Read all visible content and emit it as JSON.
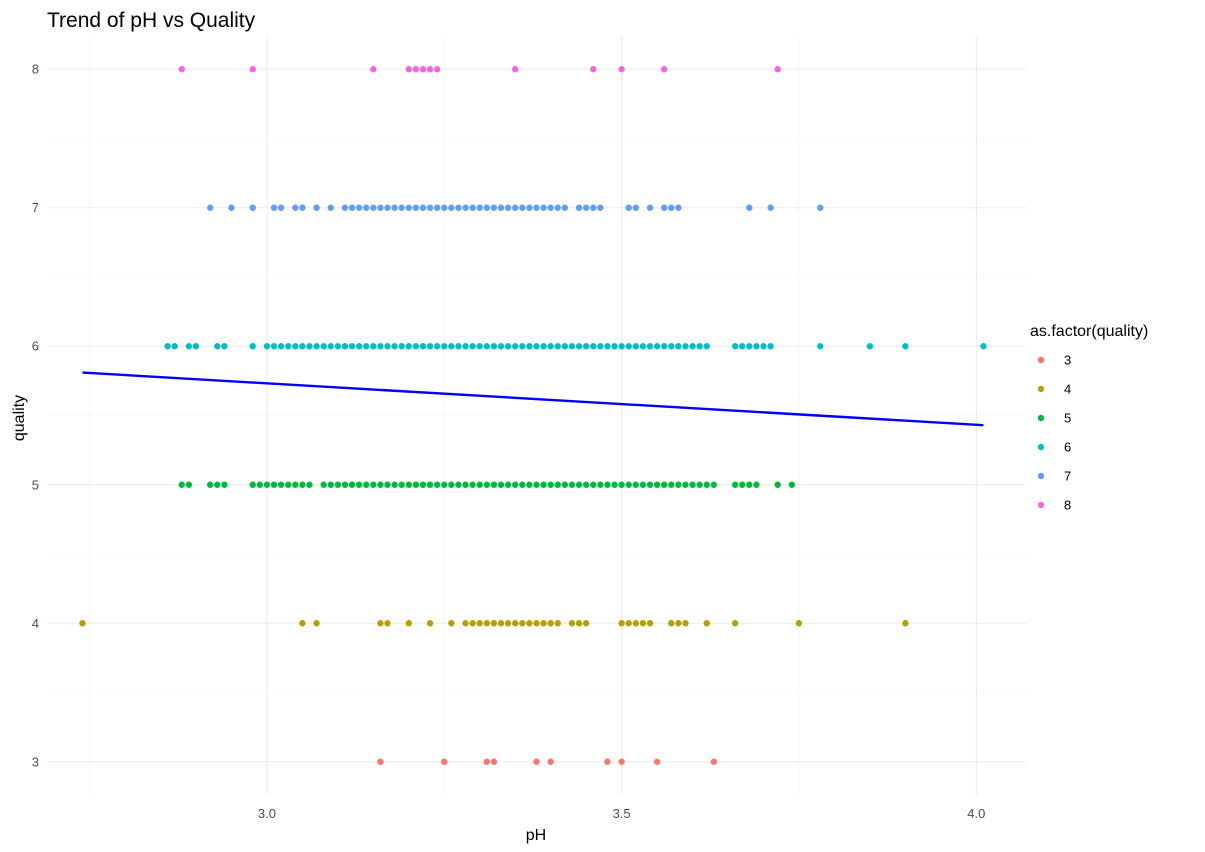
{
  "chart_data": {
    "type": "scatter",
    "title": "Trend of pH vs Quality",
    "xlabel": "pH",
    "ylabel": "quality",
    "xlim": [
      2.69,
      4.07
    ],
    "ylim": [
      2.76,
      8.24
    ],
    "x_ticks": [
      3.0,
      3.5,
      4.0
    ],
    "x_tick_labels": [
      "3.0",
      "3.5",
      "4.0"
    ],
    "y_ticks": [
      3,
      4,
      5,
      6,
      7,
      8
    ],
    "y_tick_labels": [
      "3",
      "4",
      "5",
      "6",
      "7",
      "8"
    ],
    "grid": true,
    "legend": {
      "title": "as.factor(quality)",
      "position": "right",
      "entries": [
        "3",
        "4",
        "5",
        "6",
        "7",
        "8"
      ]
    },
    "series": [
      {
        "name": "3",
        "color": "#F8766D",
        "y": 3,
        "x": [
          3.16,
          3.25,
          3.31,
          3.32,
          3.38,
          3.4,
          3.48,
          3.5,
          3.55,
          3.63
        ]
      },
      {
        "name": "4",
        "color": "#B79F00",
        "y": 4,
        "x": [
          2.74,
          3.05,
          3.07,
          3.16,
          3.17,
          3.2,
          3.23,
          3.26,
          3.28,
          3.29,
          3.3,
          3.31,
          3.32,
          3.33,
          3.34,
          3.35,
          3.36,
          3.37,
          3.38,
          3.39,
          3.4,
          3.41,
          3.43,
          3.44,
          3.45,
          3.5,
          3.51,
          3.52,
          3.53,
          3.54,
          3.57,
          3.58,
          3.59,
          3.62,
          3.66,
          3.75,
          3.9
        ]
      },
      {
        "name": "5",
        "color": "#00BA38",
        "y": 5,
        "x": [
          2.88,
          2.89,
          2.92,
          2.93,
          2.94,
          2.98,
          2.99,
          3.0,
          3.01,
          3.02,
          3.03,
          3.04,
          3.05,
          3.06,
          3.08,
          3.09,
          3.1,
          3.11,
          3.12,
          3.13,
          3.14,
          3.15,
          3.16,
          3.17,
          3.18,
          3.19,
          3.2,
          3.21,
          3.22,
          3.23,
          3.24,
          3.25,
          3.26,
          3.27,
          3.28,
          3.29,
          3.3,
          3.31,
          3.32,
          3.33,
          3.34,
          3.35,
          3.36,
          3.37,
          3.38,
          3.39,
          3.4,
          3.41,
          3.42,
          3.43,
          3.44,
          3.45,
          3.46,
          3.47,
          3.48,
          3.49,
          3.5,
          3.51,
          3.52,
          3.53,
          3.54,
          3.55,
          3.56,
          3.57,
          3.58,
          3.59,
          3.6,
          3.61,
          3.62,
          3.63,
          3.66,
          3.67,
          3.68,
          3.69,
          3.72,
          3.74
        ]
      },
      {
        "name": "6",
        "color": "#00BFC4",
        "y": 6,
        "x": [
          2.86,
          2.87,
          2.89,
          2.9,
          2.93,
          2.94,
          2.98,
          3.0,
          3.01,
          3.02,
          3.03,
          3.04,
          3.05,
          3.06,
          3.07,
          3.08,
          3.09,
          3.1,
          3.11,
          3.12,
          3.13,
          3.14,
          3.15,
          3.16,
          3.17,
          3.18,
          3.19,
          3.2,
          3.21,
          3.22,
          3.23,
          3.24,
          3.25,
          3.26,
          3.27,
          3.28,
          3.29,
          3.3,
          3.31,
          3.32,
          3.33,
          3.34,
          3.35,
          3.36,
          3.37,
          3.38,
          3.39,
          3.4,
          3.41,
          3.42,
          3.43,
          3.44,
          3.45,
          3.46,
          3.47,
          3.48,
          3.49,
          3.5,
          3.51,
          3.52,
          3.53,
          3.54,
          3.55,
          3.56,
          3.57,
          3.58,
          3.59,
          3.6,
          3.61,
          3.62,
          3.66,
          3.67,
          3.68,
          3.69,
          3.7,
          3.71,
          3.78,
          3.85,
          3.9,
          4.01
        ]
      },
      {
        "name": "7",
        "color": "#619CFF",
        "y": 7,
        "x": [
          2.92,
          2.95,
          2.98,
          3.01,
          3.02,
          3.04,
          3.05,
          3.07,
          3.09,
          3.11,
          3.12,
          3.13,
          3.14,
          3.15,
          3.16,
          3.17,
          3.18,
          3.19,
          3.2,
          3.21,
          3.22,
          3.23,
          3.24,
          3.25,
          3.26,
          3.27,
          3.28,
          3.29,
          3.3,
          3.31,
          3.32,
          3.33,
          3.34,
          3.35,
          3.36,
          3.37,
          3.38,
          3.39,
          3.4,
          3.41,
          3.42,
          3.44,
          3.45,
          3.46,
          3.47,
          3.51,
          3.52,
          3.54,
          3.56,
          3.57,
          3.58,
          3.68,
          3.71,
          3.78
        ]
      },
      {
        "name": "8",
        "color": "#F564E3",
        "y": 8,
        "x": [
          2.88,
          2.98,
          3.15,
          3.2,
          3.21,
          3.22,
          3.23,
          3.24,
          3.35,
          3.46,
          3.5,
          3.56,
          3.72
        ]
      }
    ],
    "trend_line": {
      "type": "linear",
      "color": "#0000FF",
      "points": [
        [
          2.74,
          5.81
        ],
        [
          4.01,
          5.43
        ]
      ]
    }
  }
}
